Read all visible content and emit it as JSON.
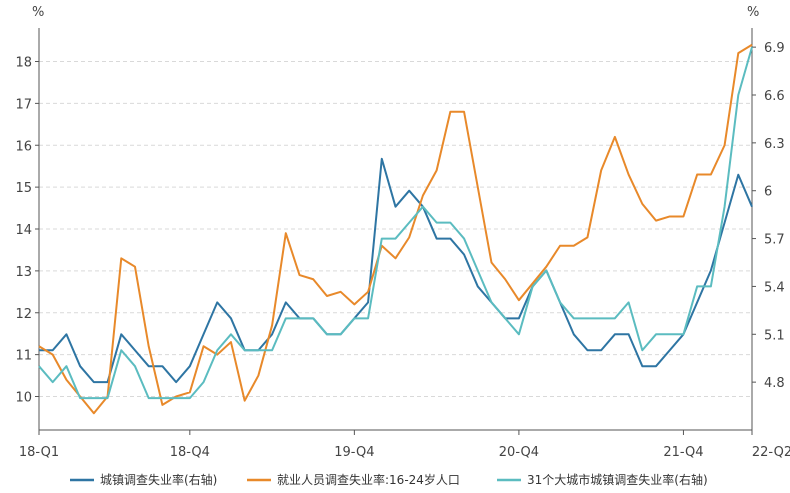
{
  "chart_data": {
    "type": "line",
    "left_unit": "%",
    "right_unit": "%",
    "x_tick_labels": [
      "18-Q1",
      "18-Q4",
      "19-Q4",
      "20-Q4",
      "21-Q4",
      "22-Q2"
    ],
    "x_tick_index": [
      0,
      11,
      23,
      35,
      47,
      52
    ],
    "ylim_left": [
      9.2,
      18.8
    ],
    "yticks_left": [
      10,
      11,
      12,
      13,
      14,
      15,
      16,
      17,
      18
    ],
    "ylim_right": [
      4.5,
      7.02
    ],
    "yticks_right": [
      "4.8",
      "5.1",
      "5.4",
      "5.7",
      "6",
      "6.3",
      "6.6",
      "6.9"
    ],
    "grid": "horizontal dashed",
    "legend_position": "bottom",
    "series": [
      {
        "name": "城镇调查失业率(右轴)",
        "axis": "right",
        "color": "#2E75A3",
        "values": [
          5.0,
          5.0,
          5.1,
          4.9,
          4.8,
          4.8,
          5.1,
          5.0,
          4.9,
          4.9,
          4.8,
          4.9,
          5.1,
          5.3,
          5.2,
          5.0,
          5.0,
          5.1,
          5.3,
          5.2,
          5.2,
          5.1,
          5.1,
          5.2,
          5.3,
          6.2,
          5.9,
          6.0,
          5.9,
          5.7,
          5.7,
          5.6,
          5.4,
          5.3,
          5.2,
          5.2,
          5.4,
          5.5,
          5.3,
          5.1,
          5.0,
          5.0,
          5.1,
          5.1,
          4.9,
          4.9,
          5.0,
          5.1,
          5.3,
          5.5,
          5.8,
          6.1,
          5.9
        ]
      },
      {
        "name": "就业人员调查失业率:16-24岁人口",
        "axis": "left",
        "color": "#E8892A",
        "values": [
          11.2,
          11.0,
          10.4,
          10.0,
          9.6,
          10.0,
          13.3,
          13.1,
          11.2,
          9.8,
          10.0,
          10.1,
          11.2,
          11.0,
          11.3,
          9.9,
          10.5,
          11.7,
          13.9,
          12.9,
          12.8,
          12.4,
          12.5,
          12.2,
          12.5,
          13.6,
          13.3,
          13.8,
          14.8,
          15.4,
          16.8,
          16.8,
          15.0,
          13.2,
          12.8,
          12.3,
          12.7,
          13.1,
          13.6,
          13.6,
          13.8,
          15.4,
          16.2,
          15.3,
          14.6,
          14.2,
          14.3,
          14.3,
          15.3,
          15.3,
          16.0,
          18.2,
          18.4
        ]
      },
      {
        "name": "31个大城市城镇调查失业率(右轴)",
        "axis": "right",
        "color": "#5BBCC0",
        "values": [
          4.9,
          4.8,
          4.9,
          4.7,
          4.7,
          4.7,
          5.0,
          4.9,
          4.7,
          4.7,
          4.7,
          4.7,
          4.8,
          5.0,
          5.1,
          5.0,
          5.0,
          5.0,
          5.2,
          5.2,
          5.2,
          5.1,
          5.1,
          5.2,
          5.2,
          5.7,
          5.7,
          5.8,
          5.9,
          5.8,
          5.8,
          5.7,
          5.5,
          5.3,
          5.2,
          5.1,
          5.4,
          5.5,
          5.3,
          5.2,
          5.2,
          5.2,
          5.2,
          5.3,
          5.0,
          5.1,
          5.1,
          5.1,
          5.4,
          5.4,
          5.9,
          6.6,
          6.9
        ]
      }
    ]
  }
}
